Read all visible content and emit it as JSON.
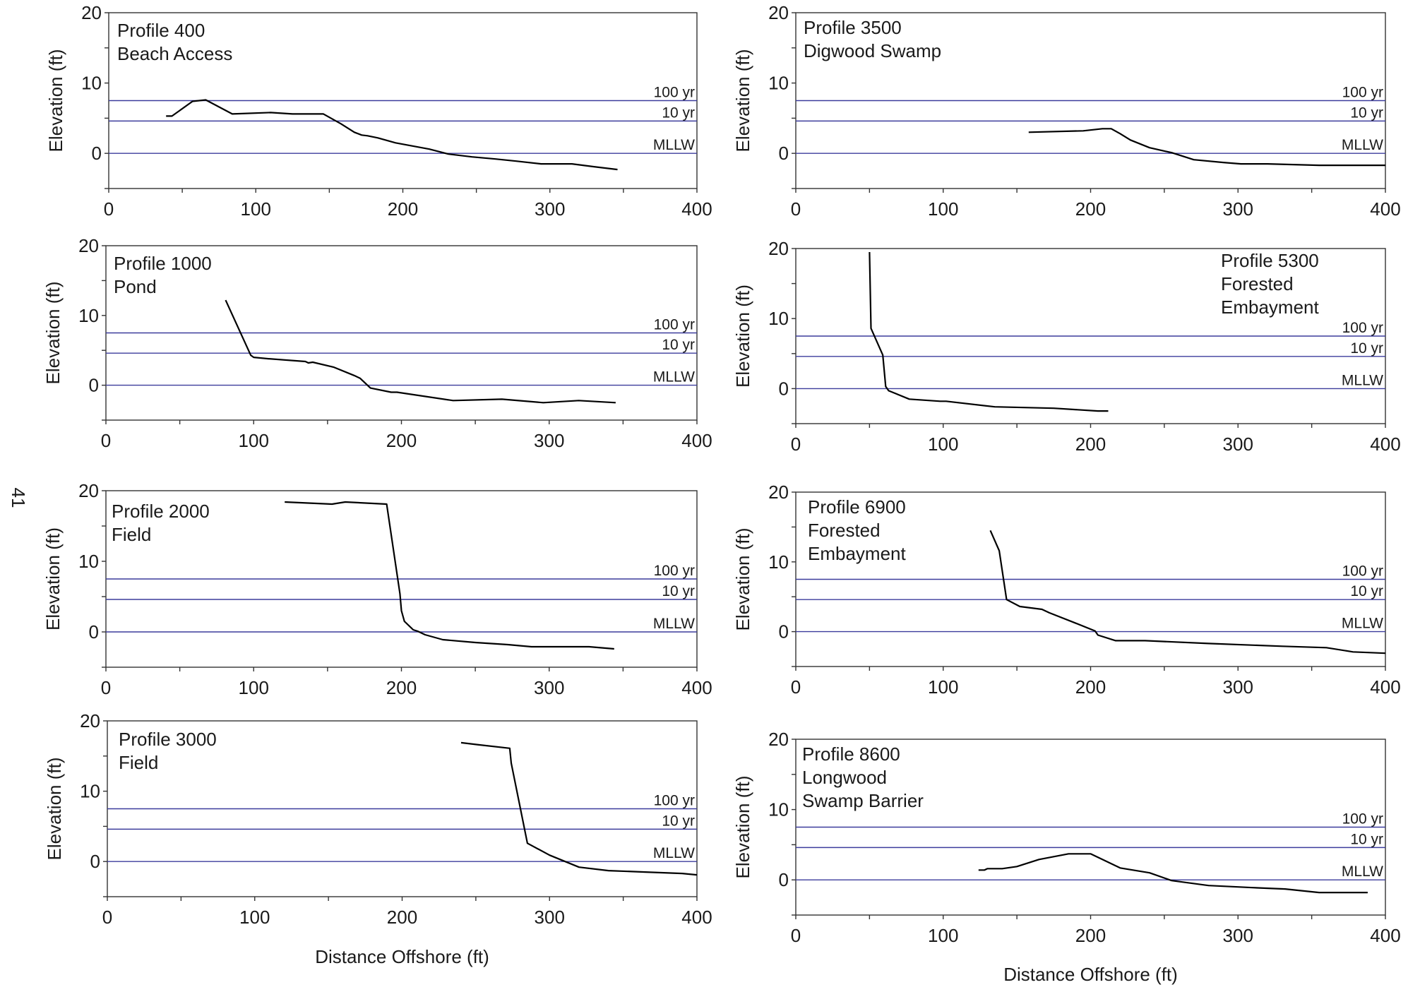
{
  "page_number": "41",
  "colors": {
    "level_line": "#3c3c9c",
    "profile_line": "#000000",
    "frame": "#333333"
  },
  "level_labels": [
    "100 yr",
    "10 yr",
    "MLLW"
  ],
  "chart_data": [
    {
      "type": "line",
      "annotation": [
        "Profile 400",
        "Beach Access"
      ],
      "xlabel": "",
      "ylabel": "Elevation (ft)",
      "xlim": [
        0,
        400
      ],
      "ylim": [
        -5,
        20
      ],
      "xticks": [
        "0",
        "100",
        "200",
        "300",
        "400"
      ],
      "yticks": [
        "20",
        "10",
        "0"
      ],
      "reference_lines": [
        {
          "label": "100 yr",
          "y": 7.5
        },
        {
          "label": "10 yr",
          "y": 4.6
        },
        {
          "label": "MLLW",
          "y": 0
        }
      ],
      "series": [
        {
          "x": [
            39,
            43,
            57,
            66,
            84,
            110,
            125,
            146,
            158,
            167,
            172,
            176,
            183,
            195,
            218,
            231,
            247,
            263,
            277,
            294,
            315,
            330,
            346
          ],
          "y": [
            5.3,
            5.3,
            7.4,
            7.6,
            5.6,
            5.8,
            5.6,
            5.6,
            4.2,
            3.0,
            2.6,
            2.5,
            2.2,
            1.5,
            0.6,
            -0.1,
            -0.5,
            -0.8,
            -1.1,
            -1.5,
            -1.5,
            -1.9,
            -2.3
          ]
        }
      ]
    },
    {
      "type": "line",
      "annotation": [
        "Profile 3500",
        "Digwood Swamp"
      ],
      "xlabel": "",
      "ylabel": "Elevation (ft)",
      "xlim": [
        0,
        400
      ],
      "ylim": [
        -5,
        20
      ],
      "xticks": [
        "0",
        "100",
        "200",
        "300",
        "400"
      ],
      "yticks": [
        "20",
        "10",
        "0"
      ],
      "reference_lines": [
        {
          "label": "100 yr",
          "y": 7.5
        },
        {
          "label": "10 yr",
          "y": 4.6
        },
        {
          "label": "MLLW",
          "y": 0
        }
      ],
      "series": [
        {
          "x": [
            158,
            195,
            208,
            214,
            220,
            227,
            240,
            255,
            270,
            290,
            302,
            320,
            355,
            400
          ],
          "y": [
            3.0,
            3.2,
            3.5,
            3.5,
            2.8,
            1.9,
            0.8,
            0.1,
            -0.9,
            -1.3,
            -1.5,
            -1.5,
            -1.7,
            -1.7
          ]
        }
      ]
    },
    {
      "type": "line",
      "annotation": [
        "Profile 1000",
        "Pond"
      ],
      "xlabel": "",
      "ylabel": "Elevation (ft)",
      "xlim": [
        0,
        400
      ],
      "ylim": [
        -5,
        20
      ],
      "xticks": [
        "0",
        "100",
        "200",
        "300",
        "400"
      ],
      "yticks": [
        "20",
        "10",
        "0"
      ],
      "reference_lines": [
        {
          "label": "100 yr",
          "y": 7.5
        },
        {
          "label": "10 yr",
          "y": 4.6
        },
        {
          "label": "MLLW",
          "y": 0
        }
      ],
      "series": [
        {
          "x": [
            81,
            98,
            100,
            110,
            135,
            137,
            140,
            154,
            168,
            172,
            179,
            193,
            197,
            235,
            268,
            296,
            320,
            345
          ],
          "y": [
            12.2,
            4.3,
            4.0,
            3.8,
            3.4,
            3.2,
            3.3,
            2.6,
            1.4,
            1.0,
            -0.4,
            -1.0,
            -1.0,
            -2.2,
            -2.0,
            -2.5,
            -2.2,
            -2.5
          ]
        }
      ]
    },
    {
      "type": "line",
      "annotation": [
        "Profile 5300",
        "Forested",
        "Embayment"
      ],
      "xlabel": "",
      "ylabel": "Elevation (ft)",
      "xlim": [
        0,
        400
      ],
      "ylim": [
        -5,
        20
      ],
      "xticks": [
        "0",
        "100",
        "200",
        "300",
        "400"
      ],
      "yticks": [
        "20",
        "10",
        "0"
      ],
      "reference_lines": [
        {
          "label": "100 yr",
          "y": 7.5
        },
        {
          "label": "10 yr",
          "y": 4.6
        },
        {
          "label": "MLLW",
          "y": 0
        }
      ],
      "series": [
        {
          "x": [
            50,
            51,
            59,
            61,
            63,
            77,
            98,
            102,
            135,
            175,
            205,
            212
          ],
          "y": [
            19.5,
            8.6,
            4.8,
            0.3,
            -0.3,
            -1.5,
            -1.8,
            -1.8,
            -2.6,
            -2.8,
            -3.2,
            -3.2
          ]
        }
      ]
    },
    {
      "type": "line",
      "annotation": [
        "Profile 2000",
        "Field"
      ],
      "xlabel": "",
      "ylabel": "Elevation (ft)",
      "xlim": [
        0,
        400
      ],
      "ylim": [
        -5,
        20
      ],
      "xticks": [
        "0",
        "100",
        "200",
        "300",
        "400"
      ],
      "yticks": [
        "20",
        "10",
        "0"
      ],
      "reference_lines": [
        {
          "label": "100 yr",
          "y": 7.5
        },
        {
          "label": "10 yr",
          "y": 4.6
        },
        {
          "label": "MLLW",
          "y": 0
        }
      ],
      "series": [
        {
          "x": [
            121,
            153,
            162,
            190,
            199,
            200,
            202,
            208,
            211,
            216,
            228,
            250,
            272,
            288,
            327,
            344
          ],
          "y": [
            18.4,
            18.1,
            18.4,
            18.1,
            5.4,
            3.0,
            1.5,
            0.3,
            0.1,
            -0.4,
            -1.1,
            -1.5,
            -1.8,
            -2.1,
            -2.1,
            -2.4
          ]
        }
      ]
    },
    {
      "type": "line",
      "annotation": [
        "Profile 6900",
        "Forested",
        "Embayment"
      ],
      "xlabel": "",
      "ylabel": "Elevation (ft)",
      "xlim": [
        0,
        400
      ],
      "ylim": [
        -5,
        20
      ],
      "xticks": [
        "0",
        "100",
        "200",
        "300",
        "400"
      ],
      "yticks": [
        "20",
        "10",
        "0"
      ],
      "reference_lines": [
        {
          "label": "100 yr",
          "y": 7.5
        },
        {
          "label": "10 yr",
          "y": 4.6
        },
        {
          "label": "MLLW",
          "y": 0
        }
      ],
      "series": [
        {
          "x": [
            132,
            138,
            143,
            152,
            167,
            172,
            190,
            203,
            205,
            217,
            237,
            280,
            330,
            360,
            378,
            400
          ],
          "y": [
            14.5,
            11.6,
            4.6,
            3.6,
            3.2,
            2.7,
            1.2,
            0.1,
            -0.5,
            -1.3,
            -1.3,
            -1.7,
            -2.1,
            -2.3,
            -2.9,
            -3.1
          ]
        }
      ]
    },
    {
      "type": "line",
      "annotation": [
        "Profile 3000",
        "Field"
      ],
      "xlabel": "Distance Offshore (ft)",
      "ylabel": "Elevation (ft)",
      "xlim": [
        0,
        400
      ],
      "ylim": [
        -5,
        20
      ],
      "xticks": [
        "0",
        "100",
        "200",
        "300",
        "400"
      ],
      "yticks": [
        "20",
        "10",
        "0"
      ],
      "reference_lines": [
        {
          "label": "100 yr",
          "y": 7.5
        },
        {
          "label": "10 yr",
          "y": 4.6
        },
        {
          "label": "MLLW",
          "y": 0
        }
      ],
      "series": [
        {
          "x": [
            240,
            252,
            273,
            274,
            285,
            300,
            320,
            340,
            365,
            390,
            400
          ],
          "y": [
            16.9,
            16.6,
            16.1,
            14.0,
            2.6,
            0.9,
            -0.8,
            -1.3,
            -1.5,
            -1.7,
            -1.9
          ]
        }
      ]
    },
    {
      "type": "line",
      "annotation": [
        "Profile 8600",
        "Longwood",
        "Swamp Barrier"
      ],
      "xlabel": "Distance Offshore (ft)",
      "ylabel": "Elevation (ft)",
      "xlim": [
        0,
        400
      ],
      "ylim": [
        -5,
        20
      ],
      "xticks": [
        "0",
        "100",
        "200",
        "300",
        "400"
      ],
      "yticks": [
        "20",
        "10",
        "0"
      ],
      "reference_lines": [
        {
          "label": "100 yr",
          "y": 7.5
        },
        {
          "label": "10 yr",
          "y": 4.6
        },
        {
          "label": "MLLW",
          "y": 0
        }
      ],
      "series": [
        {
          "x": [
            124,
            128,
            130,
            140,
            150,
            165,
            185,
            200,
            220,
            240,
            255,
            280,
            310,
            332,
            355,
            388
          ],
          "y": [
            1.4,
            1.4,
            1.6,
            1.6,
            1.9,
            2.9,
            3.7,
            3.7,
            1.7,
            1.0,
            -0.1,
            -0.8,
            -1.1,
            -1.3,
            -1.8,
            -1.8
          ]
        }
      ]
    }
  ]
}
